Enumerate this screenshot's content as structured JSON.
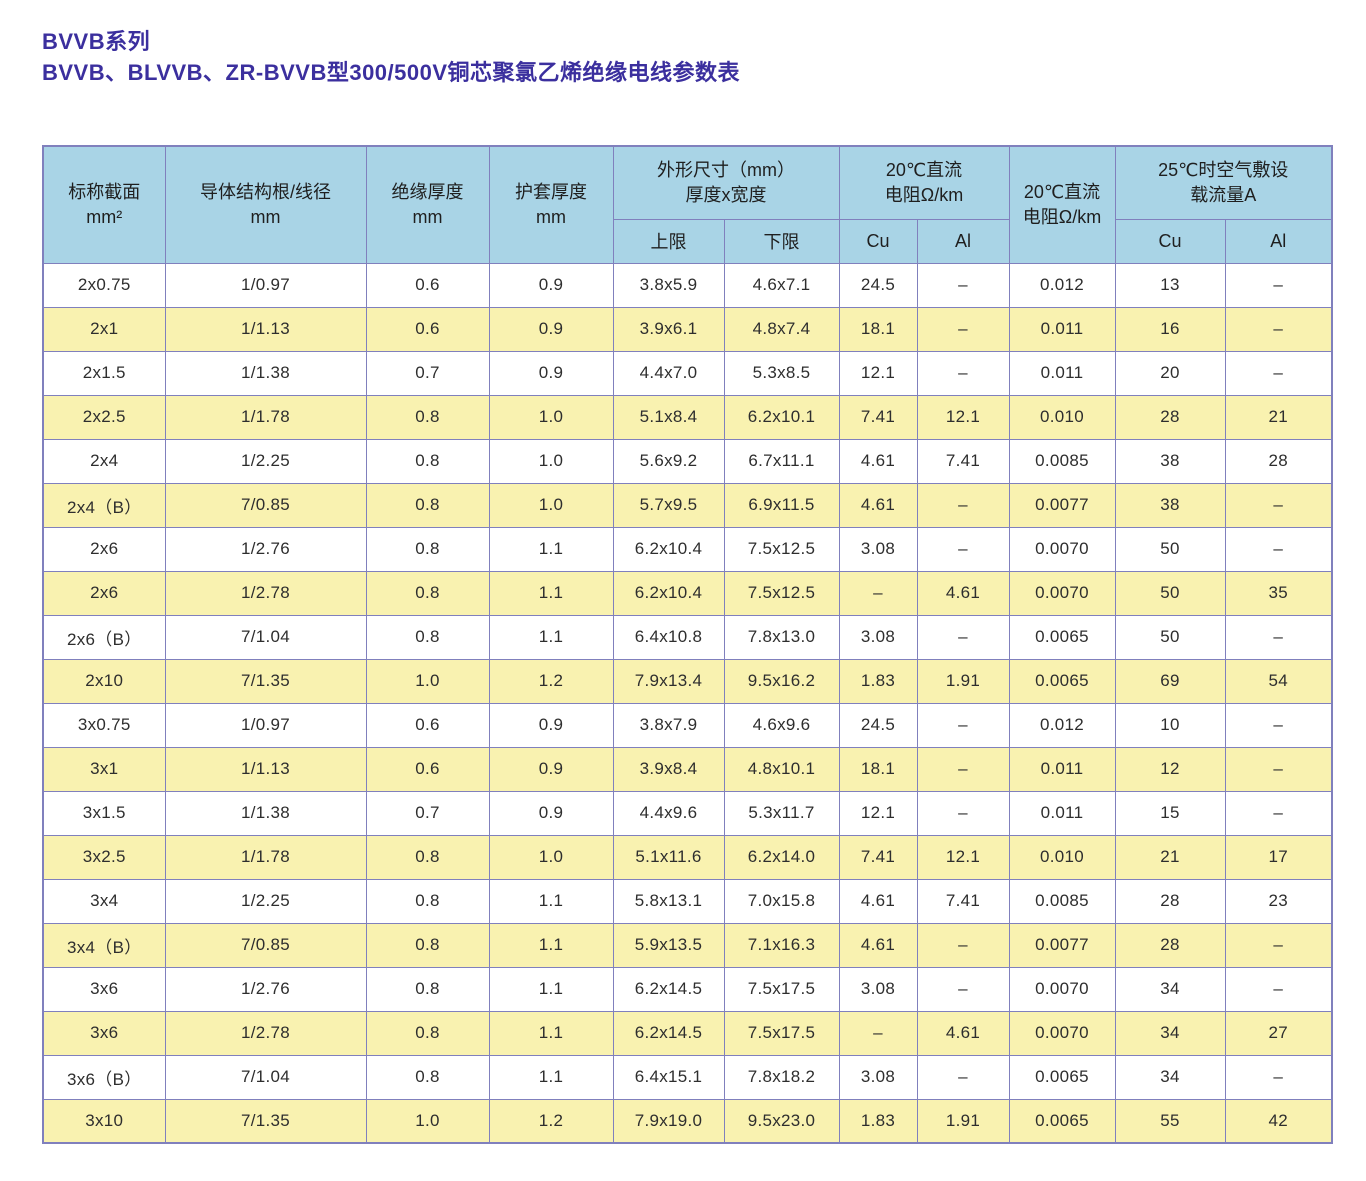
{
  "titles": {
    "series": "BVVB系列",
    "table": "BVVB、BLVVB、ZR-BVVB型300/500V铜芯聚氯乙烯绝缘电线参数表"
  },
  "table": {
    "head": {
      "nominal": [
        "标称截面",
        "mm²"
      ],
      "conductor": [
        "导体结构根/线径",
        "mm"
      ],
      "insulation": [
        "绝缘厚度",
        "mm"
      ],
      "sheath": [
        "护套厚度",
        "mm"
      ],
      "dims": [
        "外形尺寸（mm）",
        "厚度x宽度"
      ],
      "limits": [
        "上限",
        "下限"
      ],
      "dc1": [
        "20℃直流",
        "电阻Ω/km"
      ],
      "metals1": [
        "Cu",
        "Al"
      ],
      "dc2": [
        "20℃直流",
        "电阻Ω/km"
      ],
      "ampacity": [
        "25℃时空气敷设",
        "载流量A"
      ],
      "metals2": [
        "Cu",
        "Al"
      ]
    },
    "rows": [
      [
        "2x0.75",
        "1/0.97",
        "0.6",
        "0.9",
        "3.8x5.9",
        "4.6x7.1",
        "24.5",
        "–",
        "0.012",
        "13",
        "–"
      ],
      [
        "2x1",
        "1/1.13",
        "0.6",
        "0.9",
        "3.9x6.1",
        "4.8x7.4",
        "18.1",
        "–",
        "0.011",
        "16",
        "–"
      ],
      [
        "2x1.5",
        "1/1.38",
        "0.7",
        "0.9",
        "4.4x7.0",
        "5.3x8.5",
        "12.1",
        "–",
        "0.011",
        "20",
        "–"
      ],
      [
        "2x2.5",
        "1/1.78",
        "0.8",
        "1.0",
        "5.1x8.4",
        "6.2x10.1",
        "7.41",
        "12.1",
        "0.010",
        "28",
        "21"
      ],
      [
        "2x4",
        "1/2.25",
        "0.8",
        "1.0",
        "5.6x9.2",
        "6.7x11.1",
        "4.61",
        "7.41",
        "0.0085",
        "38",
        "28"
      ],
      [
        "2x4（B）",
        "7/0.85",
        "0.8",
        "1.0",
        "5.7x9.5",
        "6.9x11.5",
        "4.61",
        "–",
        "0.0077",
        "38",
        "–"
      ],
      [
        "2x6",
        "1/2.76",
        "0.8",
        "1.1",
        "6.2x10.4",
        "7.5x12.5",
        "3.08",
        "–",
        "0.0070",
        "50",
        "–"
      ],
      [
        "2x6",
        "1/2.78",
        "0.8",
        "1.1",
        "6.2x10.4",
        "7.5x12.5",
        "–",
        "4.61",
        "0.0070",
        "50",
        "35"
      ],
      [
        "2x6（B）",
        "7/1.04",
        "0.8",
        "1.1",
        "6.4x10.8",
        "7.8x13.0",
        "3.08",
        "–",
        "0.0065",
        "50",
        "–"
      ],
      [
        "2x10",
        "7/1.35",
        "1.0",
        "1.2",
        "7.9x13.4",
        "9.5x16.2",
        "1.83",
        "1.91",
        "0.0065",
        "69",
        "54"
      ],
      [
        "3x0.75",
        "1/0.97",
        "0.6",
        "0.9",
        "3.8x7.9",
        "4.6x9.6",
        "24.5",
        "–",
        "0.012",
        "10",
        "–"
      ],
      [
        "3x1",
        "1/1.13",
        "0.6",
        "0.9",
        "3.9x8.4",
        "4.8x10.1",
        "18.1",
        "–",
        "0.011",
        "12",
        "–"
      ],
      [
        "3x1.5",
        "1/1.38",
        "0.7",
        "0.9",
        "4.4x9.6",
        "5.3x11.7",
        "12.1",
        "–",
        "0.011",
        "15",
        "–"
      ],
      [
        "3x2.5",
        "1/1.78",
        "0.8",
        "1.0",
        "5.1x11.6",
        "6.2x14.0",
        "7.41",
        "12.1",
        "0.010",
        "21",
        "17"
      ],
      [
        "3x4",
        "1/2.25",
        "0.8",
        "1.1",
        "5.8x13.1",
        "7.0x15.8",
        "4.61",
        "7.41",
        "0.0085",
        "28",
        "23"
      ],
      [
        "3x4（B）",
        "7/0.85",
        "0.8",
        "1.1",
        "5.9x13.5",
        "7.1x16.3",
        "4.61",
        "–",
        "0.0077",
        "28",
        "–"
      ],
      [
        "3x6",
        "1/2.76",
        "0.8",
        "1.1",
        "6.2x14.5",
        "7.5x17.5",
        "3.08",
        "–",
        "0.0070",
        "34",
        "–"
      ],
      [
        "3x6",
        "1/2.78",
        "0.8",
        "1.1",
        "6.2x14.5",
        "7.5x17.5",
        "–",
        "4.61",
        "0.0070",
        "34",
        "27"
      ],
      [
        "3x6（B）",
        "7/1.04",
        "0.8",
        "1.1",
        "6.4x15.1",
        "7.8x18.2",
        "3.08",
        "–",
        "0.0065",
        "34",
        "–"
      ],
      [
        "3x10",
        "7/1.35",
        "1.0",
        "1.2",
        "7.9x19.0",
        "9.5x23.0",
        "1.83",
        "1.91",
        "0.0065",
        "55",
        "42"
      ]
    ]
  },
  "colors": {
    "title_color": "#3b2f9e",
    "header_bg": "#a9d4e6",
    "row_alt": "#f9f2b0",
    "border": "#8080bd",
    "text": "#2e2e2e"
  }
}
